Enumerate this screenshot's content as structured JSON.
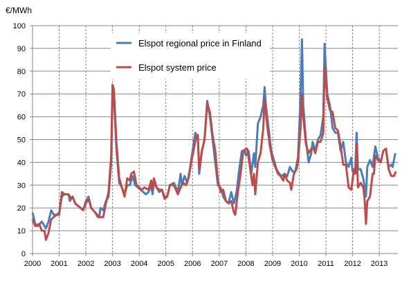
{
  "chart_data": {
    "type": "line",
    "title": "",
    "unit_label": "€/MWh",
    "xlabel": "",
    "ylabel": "€/MWh",
    "xlim": [
      2000,
      2013.75
    ],
    "ylim": [
      0,
      100
    ],
    "x_ticks": [
      "2000",
      "2001",
      "2002",
      "2003",
      "2004",
      "2005",
      "2006",
      "2007",
      "2008",
      "2009",
      "2010",
      "2011",
      "2012",
      "2013"
    ],
    "y_ticks": [
      "0",
      "10",
      "20",
      "30",
      "40",
      "50",
      "60",
      "70",
      "80",
      "90",
      "100"
    ],
    "grid": {
      "horizontal": "solid",
      "vertical": "dashed"
    },
    "legend_position": "top-center",
    "series": [
      {
        "name": "Elspot regional price in Finland",
        "color": "#4a7ebb",
        "points": [
          [
            2000.0,
            18
          ],
          [
            2000.1,
            13
          ],
          [
            2000.2,
            12
          ],
          [
            2000.35,
            14
          ],
          [
            2000.5,
            11
          ],
          [
            2000.6,
            14
          ],
          [
            2000.7,
            19
          ],
          [
            2000.8,
            17
          ],
          [
            2000.9,
            17
          ],
          [
            2001.0,
            18
          ],
          [
            2001.1,
            25
          ],
          [
            2001.2,
            26
          ],
          [
            2001.35,
            26
          ],
          [
            2001.4,
            23
          ],
          [
            2001.5,
            25
          ],
          [
            2001.6,
            22
          ],
          [
            2001.8,
            20
          ],
          [
            2001.9,
            19
          ],
          [
            2002.0,
            23
          ],
          [
            2002.1,
            25
          ],
          [
            2002.2,
            20
          ],
          [
            2002.35,
            18
          ],
          [
            2002.5,
            16
          ],
          [
            2002.55,
            20
          ],
          [
            2002.65,
            19
          ],
          [
            2002.75,
            23
          ],
          [
            2002.85,
            25
          ],
          [
            2002.95,
            40
          ],
          [
            2003.0,
            70
          ],
          [
            2003.05,
            69
          ],
          [
            2003.15,
            45
          ],
          [
            2003.25,
            31
          ],
          [
            2003.35,
            29
          ],
          [
            2003.45,
            26
          ],
          [
            2003.55,
            30
          ],
          [
            2003.65,
            30
          ],
          [
            2003.75,
            34
          ],
          [
            2003.85,
            30
          ],
          [
            2003.95,
            29
          ],
          [
            2004.05,
            28
          ],
          [
            2004.15,
            27
          ],
          [
            2004.25,
            26
          ],
          [
            2004.35,
            27
          ],
          [
            2004.45,
            30
          ],
          [
            2004.5,
            26
          ],
          [
            2004.55,
            31
          ],
          [
            2004.65,
            29
          ],
          [
            2004.75,
            27
          ],
          [
            2004.85,
            28
          ],
          [
            2004.95,
            25
          ],
          [
            2005.05,
            25
          ],
          [
            2005.15,
            30
          ],
          [
            2005.3,
            31
          ],
          [
            2005.45,
            27
          ],
          [
            2005.55,
            35
          ],
          [
            2005.6,
            30
          ],
          [
            2005.7,
            34
          ],
          [
            2005.8,
            31
          ],
          [
            2005.9,
            37
          ],
          [
            2006.0,
            45
          ],
          [
            2006.1,
            53
          ],
          [
            2006.2,
            50
          ],
          [
            2006.25,
            35
          ],
          [
            2006.35,
            45
          ],
          [
            2006.45,
            50
          ],
          [
            2006.55,
            67
          ],
          [
            2006.65,
            60
          ],
          [
            2006.75,
            50
          ],
          [
            2006.85,
            40
          ],
          [
            2006.95,
            30
          ],
          [
            2007.05,
            29
          ],
          [
            2007.15,
            25
          ],
          [
            2007.25,
            23
          ],
          [
            2007.35,
            22
          ],
          [
            2007.45,
            27
          ],
          [
            2007.55,
            22
          ],
          [
            2007.65,
            27
          ],
          [
            2007.75,
            37
          ],
          [
            2007.85,
            45
          ],
          [
            2007.95,
            45
          ],
          [
            2008.0,
            43
          ],
          [
            2008.1,
            45
          ],
          [
            2008.2,
            35
          ],
          [
            2008.3,
            44
          ],
          [
            2008.35,
            38
          ],
          [
            2008.45,
            57
          ],
          [
            2008.55,
            60
          ],
          [
            2008.65,
            65
          ],
          [
            2008.7,
            73
          ],
          [
            2008.75,
            65
          ],
          [
            2008.85,
            55
          ],
          [
            2008.95,
            45
          ],
          [
            2009.05,
            41
          ],
          [
            2009.15,
            37
          ],
          [
            2009.25,
            35
          ],
          [
            2009.35,
            34
          ],
          [
            2009.45,
            35
          ],
          [
            2009.55,
            34
          ],
          [
            2009.65,
            38
          ],
          [
            2009.75,
            36
          ],
          [
            2009.85,
            36
          ],
          [
            2009.95,
            42
          ],
          [
            2010.0,
            55
          ],
          [
            2010.05,
            70
          ],
          [
            2010.1,
            94
          ],
          [
            2010.15,
            65
          ],
          [
            2010.25,
            50
          ],
          [
            2010.35,
            40
          ],
          [
            2010.45,
            44
          ],
          [
            2010.5,
            49
          ],
          [
            2010.6,
            45
          ],
          [
            2010.7,
            50
          ],
          [
            2010.8,
            52
          ],
          [
            2010.9,
            60
          ],
          [
            2010.95,
            92
          ],
          [
            2011.05,
            70
          ],
          [
            2011.15,
            65
          ],
          [
            2011.25,
            55
          ],
          [
            2011.35,
            53
          ],
          [
            2011.45,
            53
          ],
          [
            2011.55,
            45
          ],
          [
            2011.65,
            49
          ],
          [
            2011.75,
            40
          ],
          [
            2011.85,
            38
          ],
          [
            2011.95,
            42
          ],
          [
            2012.0,
            36
          ],
          [
            2012.1,
            37
          ],
          [
            2012.15,
            53
          ],
          [
            2012.2,
            37
          ],
          [
            2012.3,
            37
          ],
          [
            2012.4,
            33
          ],
          [
            2012.5,
            25
          ],
          [
            2012.55,
            38
          ],
          [
            2012.65,
            41
          ],
          [
            2012.75,
            38
          ],
          [
            2012.85,
            47
          ],
          [
            2012.95,
            42
          ],
          [
            2013.05,
            40
          ],
          [
            2013.15,
            45
          ],
          [
            2013.25,
            46
          ],
          [
            2013.35,
            38
          ],
          [
            2013.45,
            39
          ],
          [
            2013.5,
            38
          ],
          [
            2013.6,
            44
          ]
        ]
      },
      {
        "name": "Elspot system price",
        "color": "#be4b48",
        "points": [
          [
            2000.0,
            15
          ],
          [
            2000.1,
            12
          ],
          [
            2000.25,
            13
          ],
          [
            2000.35,
            10
          ],
          [
            2000.45,
            10
          ],
          [
            2000.5,
            6
          ],
          [
            2000.6,
            9
          ],
          [
            2000.7,
            15
          ],
          [
            2000.8,
            16
          ],
          [
            2000.9,
            17
          ],
          [
            2001.0,
            17
          ],
          [
            2001.1,
            27
          ],
          [
            2001.2,
            26
          ],
          [
            2001.35,
            26
          ],
          [
            2001.45,
            24
          ],
          [
            2001.5,
            25
          ],
          [
            2001.6,
            22
          ],
          [
            2001.8,
            20
          ],
          [
            2001.9,
            19
          ],
          [
            2002.0,
            22
          ],
          [
            2002.1,
            24
          ],
          [
            2002.2,
            20
          ],
          [
            2002.35,
            18
          ],
          [
            2002.45,
            16
          ],
          [
            2002.55,
            16
          ],
          [
            2002.65,
            16
          ],
          [
            2002.75,
            22
          ],
          [
            2002.85,
            27
          ],
          [
            2002.95,
            43
          ],
          [
            2003.0,
            74
          ],
          [
            2003.05,
            72
          ],
          [
            2003.15,
            48
          ],
          [
            2003.25,
            33
          ],
          [
            2003.35,
            29
          ],
          [
            2003.45,
            25
          ],
          [
            2003.55,
            33
          ],
          [
            2003.65,
            32
          ],
          [
            2003.7,
            35
          ],
          [
            2003.8,
            36
          ],
          [
            2003.9,
            30
          ],
          [
            2004.0,
            29
          ],
          [
            2004.1,
            28
          ],
          [
            2004.2,
            29
          ],
          [
            2004.35,
            28
          ],
          [
            2004.45,
            32
          ],
          [
            2004.5,
            28
          ],
          [
            2004.55,
            33
          ],
          [
            2004.65,
            29
          ],
          [
            2004.75,
            28
          ],
          [
            2004.85,
            28
          ],
          [
            2004.95,
            24
          ],
          [
            2005.05,
            25
          ],
          [
            2005.15,
            30
          ],
          [
            2005.3,
            30
          ],
          [
            2005.45,
            26
          ],
          [
            2005.55,
            29
          ],
          [
            2005.65,
            31
          ],
          [
            2005.75,
            30
          ],
          [
            2005.85,
            33
          ],
          [
            2005.95,
            40
          ],
          [
            2006.05,
            46
          ],
          [
            2006.15,
            52
          ],
          [
            2006.2,
            52
          ],
          [
            2006.25,
            37
          ],
          [
            2006.35,
            45
          ],
          [
            2006.45,
            50
          ],
          [
            2006.55,
            66
          ],
          [
            2006.65,
            62
          ],
          [
            2006.75,
            52
          ],
          [
            2006.85,
            45
          ],
          [
            2006.95,
            32
          ],
          [
            2007.05,
            27
          ],
          [
            2007.15,
            28
          ],
          [
            2007.25,
            23
          ],
          [
            2007.35,
            22
          ],
          [
            2007.45,
            23
          ],
          [
            2007.55,
            18
          ],
          [
            2007.6,
            17
          ],
          [
            2007.7,
            27
          ],
          [
            2007.8,
            35
          ],
          [
            2007.9,
            45
          ],
          [
            2008.0,
            46
          ],
          [
            2008.05,
            46
          ],
          [
            2008.15,
            38
          ],
          [
            2008.25,
            30
          ],
          [
            2008.3,
            35
          ],
          [
            2008.35,
            26
          ],
          [
            2008.45,
            40
          ],
          [
            2008.55,
            44
          ],
          [
            2008.65,
            55
          ],
          [
            2008.7,
            68
          ],
          [
            2008.8,
            56
          ],
          [
            2008.9,
            47
          ],
          [
            2009.0,
            41
          ],
          [
            2009.1,
            38
          ],
          [
            2009.2,
            35
          ],
          [
            2009.3,
            34
          ],
          [
            2009.4,
            32
          ],
          [
            2009.45,
            35
          ],
          [
            2009.55,
            32
          ],
          [
            2009.65,
            31
          ],
          [
            2009.7,
            28
          ],
          [
            2009.8,
            35
          ],
          [
            2009.9,
            37
          ],
          [
            2009.95,
            40
          ],
          [
            2010.05,
            55
          ],
          [
            2010.1,
            70
          ],
          [
            2010.15,
            60
          ],
          [
            2010.25,
            48
          ],
          [
            2010.35,
            44
          ],
          [
            2010.45,
            46
          ],
          [
            2010.55,
            46
          ],
          [
            2010.6,
            44
          ],
          [
            2010.7,
            49
          ],
          [
            2010.8,
            49
          ],
          [
            2010.9,
            53
          ],
          [
            2010.95,
            82
          ],
          [
            2011.05,
            68
          ],
          [
            2011.15,
            63
          ],
          [
            2011.25,
            62
          ],
          [
            2011.35,
            55
          ],
          [
            2011.45,
            54
          ],
          [
            2011.55,
            47
          ],
          [
            2011.65,
            39
          ],
          [
            2011.75,
            39
          ],
          [
            2011.85,
            29
          ],
          [
            2011.95,
            28
          ],
          [
            2012.05,
            37
          ],
          [
            2012.1,
            35
          ],
          [
            2012.15,
            48
          ],
          [
            2012.2,
            29
          ],
          [
            2012.3,
            31
          ],
          [
            2012.4,
            29
          ],
          [
            2012.45,
            24
          ],
          [
            2012.5,
            13
          ],
          [
            2012.55,
            23
          ],
          [
            2012.65,
            25
          ],
          [
            2012.75,
            35
          ],
          [
            2012.8,
            35
          ],
          [
            2012.85,
            43
          ],
          [
            2012.95,
            41
          ],
          [
            2013.05,
            40
          ],
          [
            2013.15,
            45
          ],
          [
            2013.25,
            46
          ],
          [
            2013.35,
            37
          ],
          [
            2013.45,
            34
          ],
          [
            2013.55,
            34
          ],
          [
            2013.62,
            36
          ]
        ]
      }
    ]
  }
}
